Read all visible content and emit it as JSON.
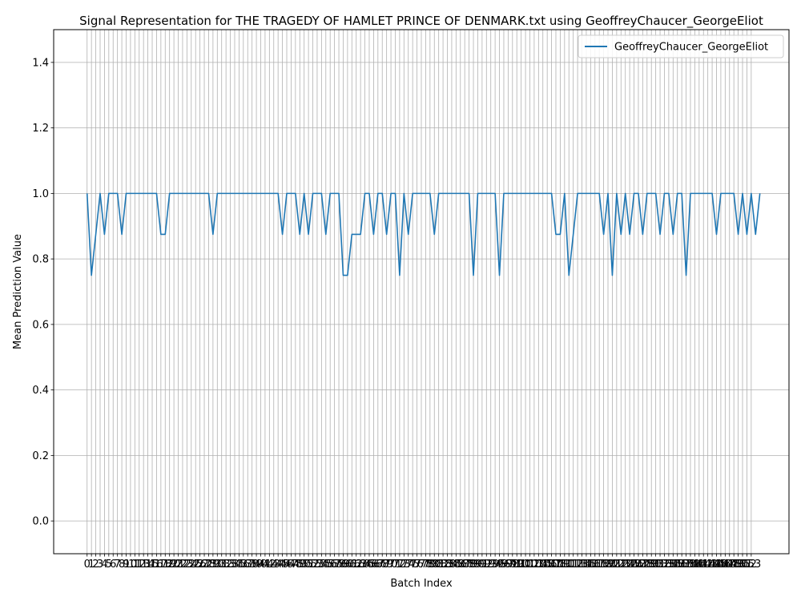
{
  "chart_data": {
    "type": "line",
    "title": "Signal Representation for THE TRAGEDY OF HAMLET PRINCE OF DENMARK.txt using GeoffreyChaucer_GeorgeEliot",
    "xlabel": "Batch Index",
    "ylabel": "Mean Prediction Value",
    "xlim": [
      -7.7,
      161.7
    ],
    "ylim": [
      -0.1,
      1.5
    ],
    "yticks": [
      0.0,
      0.2,
      0.4,
      0.6,
      0.8,
      1.0,
      1.2,
      1.4
    ],
    "xticks_from": 0,
    "xticks_to": 153,
    "grid": true,
    "legend_position": "top-right",
    "series": [
      {
        "name": "GeoffreyChaucer_GeorgeEliot",
        "color": "#1f77b4",
        "values": [
          1,
          0.75,
          0.875,
          1,
          0.875,
          1,
          1,
          1,
          0.875,
          1,
          1,
          1,
          1,
          1,
          1,
          1,
          1,
          0.875,
          0.875,
          1,
          1,
          1,
          1,
          1,
          1,
          1,
          1,
          1,
          1,
          0.875,
          1,
          1,
          1,
          1,
          1,
          1,
          1,
          1,
          1,
          1,
          1,
          1,
          1,
          1,
          1,
          0.875,
          1,
          1,
          1,
          0.875,
          1,
          0.875,
          1,
          1,
          1,
          0.875,
          1,
          1,
          1,
          0.75,
          0.75,
          0.875,
          0.875,
          0.875,
          1,
          1,
          0.875,
          1,
          1,
          0.875,
          1,
          1,
          0.75,
          1,
          0.875,
          1,
          1,
          1,
          1,
          1,
          0.875,
          1,
          1,
          1,
          1,
          1,
          1,
          1,
          1,
          0.75,
          1,
          1,
          1,
          1,
          1,
          0.75,
          1,
          1,
          1,
          1,
          1,
          1,
          1,
          1,
          1,
          1,
          1,
          1,
          0.875,
          0.875,
          1,
          0.75,
          0.875,
          1,
          1,
          1,
          1,
          1,
          1,
          0.875,
          1,
          0.75,
          1,
          0.875,
          1,
          0.875,
          1,
          1,
          0.875,
          1,
          1,
          1,
          0.875,
          1,
          1,
          0.875,
          1,
          1,
          0.75,
          1,
          1,
          1,
          1,
          1,
          1,
          0.875,
          1,
          1,
          1,
          1,
          0.875,
          1,
          0.875,
          1,
          0.875,
          1
        ]
      }
    ]
  }
}
